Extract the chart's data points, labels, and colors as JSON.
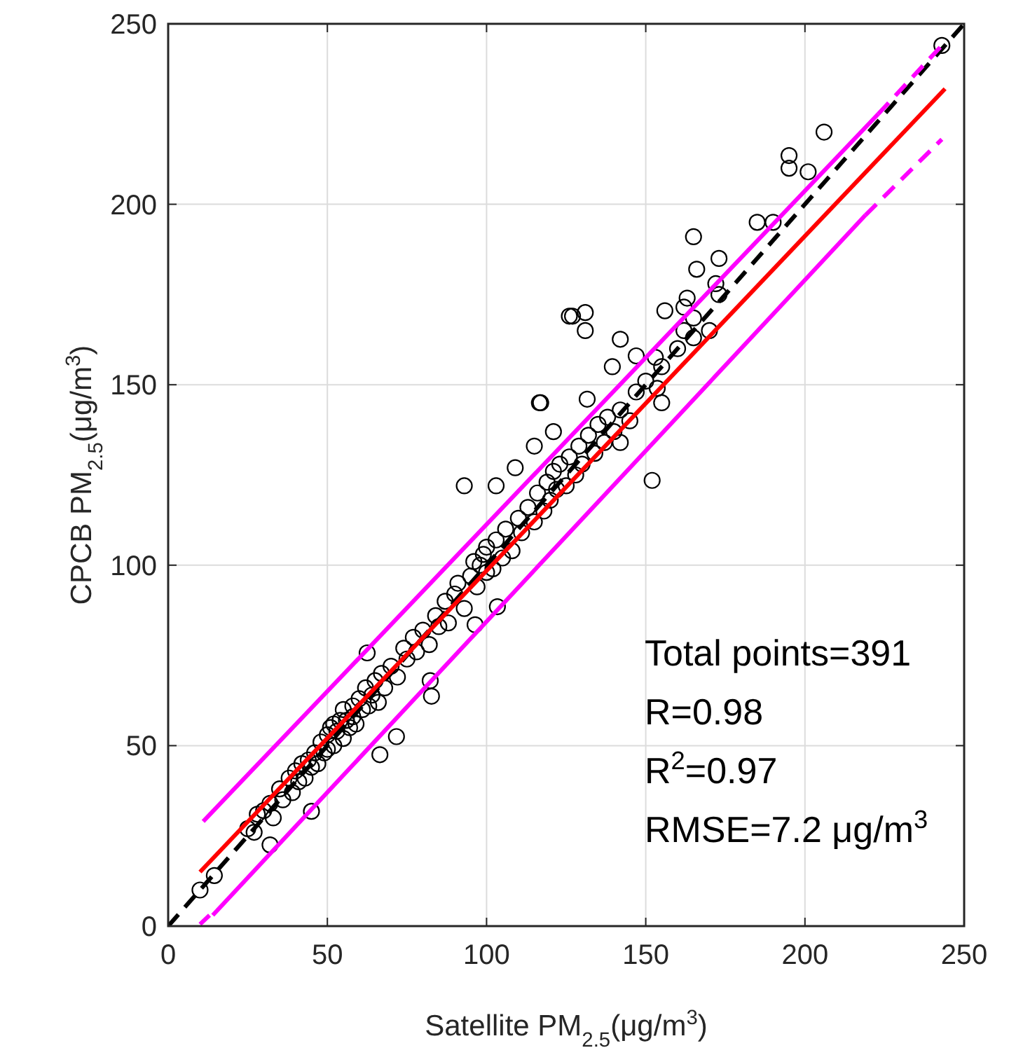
{
  "chart_data": {
    "type": "scatter",
    "xlabel": "Satellite PM$_{2.5}$(μg/m$^{3}$)",
    "ylabel": "CPCB PM$_{2.5}$(μg/m$^{3}$)",
    "xlim": [
      0,
      250
    ],
    "ylim": [
      0,
      250
    ],
    "xticks": [
      0,
      50,
      100,
      150,
      200,
      250
    ],
    "yticks": [
      0,
      50,
      100,
      150,
      200,
      250
    ],
    "grid": true,
    "annotations": [
      "Total points=391",
      "R=0.98",
      "R$^{2}$=0.97",
      "RMSE=7.2 μg/m$^{3}$"
    ],
    "series": [
      {
        "color": "#000000",
        "marker": "circle",
        "x": [
          10,
          14.5,
          32,
          45,
          62.5,
          66.5,
          71.7,
          82.7,
          82.3,
          96.4,
          103.4,
          93,
          103,
          109,
          115,
          117,
          121,
          126,
          127,
          131,
          131,
          116.6,
          131.6,
          142,
          139.5,
          142,
          147,
          152,
          153,
          153.6,
          155,
          156,
          162,
          163,
          165,
          165,
          166,
          170,
          172,
          173,
          173,
          185,
          190,
          195,
          195,
          201,
          206,
          243,
          25,
          27,
          28,
          30,
          32,
          33,
          35,
          36,
          38,
          39,
          40,
          41,
          42,
          43,
          44,
          45,
          46,
          47,
          48,
          49,
          50,
          50,
          51,
          52,
          52,
          53,
          54,
          55,
          55,
          56,
          57,
          58,
          58,
          59,
          60,
          61,
          62,
          63,
          64,
          65,
          66,
          67,
          68,
          70,
          72,
          74,
          75,
          77,
          78,
          80,
          82,
          84,
          85,
          87,
          88,
          90,
          91,
          93,
          95,
          96,
          97,
          98,
          99,
          100,
          100,
          102,
          103,
          105,
          106,
          108,
          110,
          111,
          113,
          115,
          116,
          118,
          119,
          120,
          121,
          122,
          123,
          125,
          126,
          128,
          129,
          130,
          132,
          134,
          135,
          137,
          138,
          140,
          142,
          145,
          147,
          150,
          155,
          160,
          162,
          165
        ],
        "values": [
          10,
          14,
          22.5,
          31.8,
          75.7,
          47.5,
          52.5,
          63.7,
          68,
          83.5,
          88.5,
          122,
          122,
          127,
          133,
          145,
          137,
          169,
          169,
          170,
          165,
          145,
          146,
          134,
          155,
          162.6,
          158,
          123.5,
          157.6,
          149,
          145,
          170.5,
          171.5,
          174,
          168.5,
          191,
          182,
          165,
          178,
          185,
          175,
          195,
          195,
          213.5,
          210,
          209,
          220,
          244,
          27,
          26,
          31,
          32,
          34,
          30,
          38,
          35,
          41,
          37,
          43,
          40,
          45,
          41,
          46,
          44,
          48,
          45,
          51,
          48,
          53,
          49,
          55,
          50,
          56,
          54,
          57,
          52,
          60,
          57,
          55,
          61,
          58,
          56,
          63,
          60,
          66,
          61,
          64,
          68,
          62,
          70,
          66,
          72,
          69,
          77,
          74,
          80,
          76,
          82,
          78,
          86,
          83,
          90,
          84,
          92,
          95,
          88,
          97,
          101,
          94,
          100,
          103,
          98,
          105,
          99,
          107,
          102,
          110,
          104,
          113,
          109,
          116,
          112,
          120,
          115,
          123,
          118,
          126,
          121,
          128,
          122,
          130,
          125,
          133,
          128,
          136,
          131,
          139,
          134,
          141,
          137,
          143,
          140,
          148,
          151,
          155,
          160,
          165,
          163
        ]
      },
      {
        "type": "line",
        "color": "#000000",
        "marker": "none",
        "line_style": "dashed",
        "x": [
          0,
          250
        ],
        "values": [
          0,
          250
        ]
      },
      {
        "type": "line",
        "color": "#ff0000",
        "marker": "none",
        "line_style": "solid",
        "x": [
          10,
          244
        ],
        "values": [
          15,
          232
        ]
      },
      {
        "type": "line",
        "color": "#ff00ff",
        "marker": "none",
        "line_style": "solid",
        "x": [
          11,
          223
        ],
        "values": [
          29,
          225
        ]
      },
      {
        "type": "line",
        "color": "#ff00ff",
        "marker": "none",
        "line_style": "dashed",
        "x": [
          223,
          243
        ],
        "values": [
          225,
          244
        ]
      },
      {
        "type": "line",
        "color": "#ff00ff",
        "marker": "none",
        "line_style": "dashed",
        "x": [
          10,
          13
        ],
        "values": [
          0.5,
          3
        ]
      },
      {
        "type": "line",
        "color": "#ff00ff",
        "marker": "none",
        "line_style": "solid",
        "x": [
          14,
          219
        ],
        "values": [
          3,
          197
        ]
      },
      {
        "type": "line",
        "color": "#ff00ff",
        "marker": "none",
        "line_style": "dashed",
        "x": [
          219,
          243
        ],
        "values": [
          197,
          218
        ]
      }
    ]
  }
}
